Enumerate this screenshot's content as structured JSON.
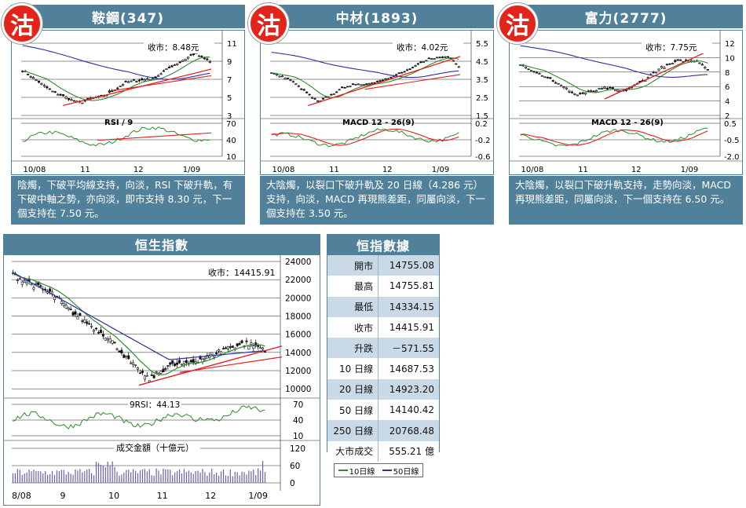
{
  "colors": {
    "header": "#51809b",
    "candle_body": "#111111",
    "ma_green": "#2e8b2e",
    "ma_blue": "#2b2f9f",
    "trend_red": "#e02020",
    "badge": "#e3241b",
    "row_alt": "#c9d9e6"
  },
  "badge_char": "沽",
  "stocks": [
    {
      "title": "鞍鋼(347)",
      "price_label": "收市：8.48元",
      "sub_label": "RSI / 9",
      "main_ticks": [
        "11",
        "9",
        "7",
        "5",
        "3"
      ],
      "sub_ticks": [
        "70",
        "40",
        "10"
      ],
      "x_labels": [
        "10/08",
        "11",
        "12",
        "1/09"
      ],
      "description": "陰燭，下破平均線支持，向淡，RSI 下破升軌，有下破中軸之勢，亦向淡，即市支持 8.30 元，下一個支持在 7.50 元。"
    },
    {
      "title": "中材(1893)",
      "price_label": "收市：4.02元",
      "sub_label": "MACD 12 - 26(9)",
      "main_ticks": [
        "5.5",
        "4.5",
        "3.5",
        "2.5",
        "1.5"
      ],
      "sub_ticks": [
        "0.2",
        "-0.2",
        "-0.6"
      ],
      "x_labels": [
        "10/08",
        "11",
        "12",
        "1/09"
      ],
      "description": "大陰燭，以裂口下破升軌及 20 日線（4.286 元）支持，向淡，MACD 再現熊差距，同屬向淡，下一個支持在 3.50 元。"
    },
    {
      "title": "富力(2777)",
      "price_label": "收市：7.75元",
      "sub_label": "MACD 12 - 26(9)",
      "main_ticks": [
        "12",
        "10",
        "8",
        "6",
        "4",
        "2"
      ],
      "sub_ticks": [
        "0.5",
        "-0.5",
        "-2.0"
      ],
      "x_labels": [
        "10/08",
        "11",
        "12",
        "1/09"
      ],
      "description": "大陰燭，以裂口下破升軌支持，走勢向淡，MACD 再現熊差距，同屬向淡，下一個支持在 6.50 元。"
    }
  ],
  "hsi": {
    "title": "恒生指數",
    "price_label": "收市：14415.91",
    "rsi_label": "9RSI：44.13",
    "volume_label": "成交金額（十億元）",
    "main_ticks": [
      "24000",
      "22000",
      "20000",
      "18000",
      "16000",
      "14000",
      "12000",
      "10000"
    ],
    "rsi_ticks": [
      "70",
      "40",
      "10"
    ],
    "vol_ticks": [
      "120",
      "60",
      "0"
    ],
    "x_labels": [
      "8/08",
      "9",
      "10",
      "11",
      "12",
      "1/09"
    ]
  },
  "table": {
    "title": "恒指數據",
    "rows": [
      {
        "label": "開市",
        "value": "14755.08"
      },
      {
        "label": "最高",
        "value": "14755.81"
      },
      {
        "label": "最低",
        "value": "14334.15"
      },
      {
        "label": "收市",
        "value": "14415.91"
      },
      {
        "label": "升跌",
        "value": "－571.55"
      },
      {
        "label": "10 日線",
        "value": "14687.53"
      },
      {
        "label": "20 日線",
        "value": "14923.20"
      },
      {
        "label": "50 日線",
        "value": "14140.42"
      },
      {
        "label": "250 日線",
        "value": "20768.48"
      },
      {
        "label": "大市成交",
        "value": "555.21 億"
      }
    ]
  },
  "legend": {
    "green": "10日線",
    "blue": "50日線"
  },
  "chart_data": [
    {
      "type": "candlestick",
      "title": "鞍鋼(347)",
      "ylim": [
        3,
        11
      ],
      "close": 8.48,
      "indicator": "RSI / 9",
      "indicator_range": [
        10,
        70
      ],
      "x": [
        "10/08",
        "11",
        "12",
        "1/09"
      ]
    },
    {
      "type": "candlestick",
      "title": "中材(1893)",
      "ylim": [
        1.5,
        5.5
      ],
      "close": 4.02,
      "indicator": "MACD 12 - 26(9)",
      "indicator_range": [
        -0.6,
        0.2
      ],
      "x": [
        "10/08",
        "11",
        "12",
        "1/09"
      ]
    },
    {
      "type": "candlestick",
      "title": "富力(2777)",
      "ylim": [
        2,
        12
      ],
      "close": 7.75,
      "indicator": "MACD 12 - 26(9)",
      "indicator_range": [
        -2.0,
        0.5
      ],
      "x": [
        "10/08",
        "11",
        "12",
        "1/09"
      ]
    },
    {
      "type": "candlestick",
      "title": "恒生指數",
      "ylim": [
        10000,
        24000
      ],
      "close": 14415.91,
      "rsi": 44.13,
      "x": [
        "8/08",
        "9",
        "10",
        "11",
        "12",
        "1/09"
      ],
      "series": [
        {
          "name": "10日線"
        },
        {
          "name": "50日線"
        }
      ],
      "close_path_approx": [
        22500,
        21500,
        20500,
        18500,
        17000,
        15500,
        13000,
        11000,
        12500,
        12800,
        13500,
        14500,
        15000,
        14400
      ]
    }
  ]
}
